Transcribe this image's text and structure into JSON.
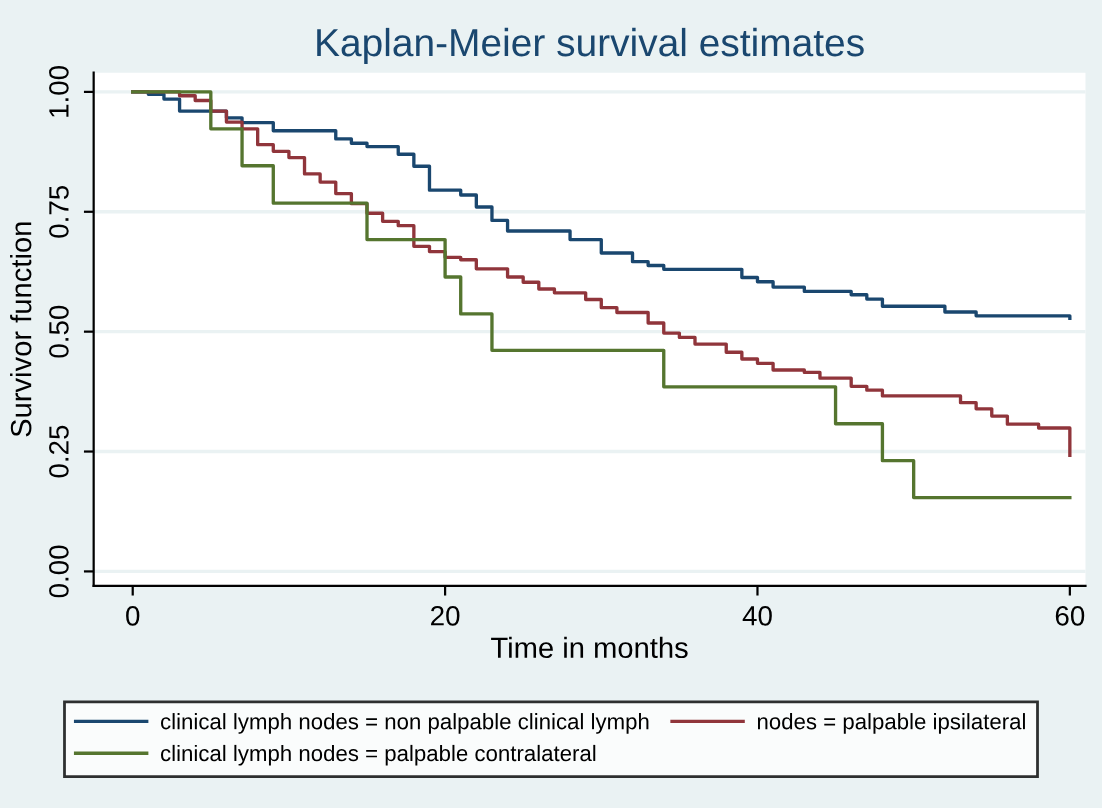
{
  "chart_data": {
    "type": "step",
    "title": "Kaplan-Meier survival estimates",
    "xlabel": "Time in months",
    "ylabel": "Survivor function",
    "xlim": [
      -2.5,
      61
    ],
    "xticks": [
      0,
      20,
      40,
      60
    ],
    "ylim": [
      -0.03,
      1.04
    ],
    "yticks": [
      {
        "value": 0,
        "label": "0.00"
      },
      {
        "value": 0.25,
        "label": "0.25"
      },
      {
        "value": 0.5,
        "label": "0.50"
      },
      {
        "value": 0.75,
        "label": "0.75"
      },
      {
        "value": 1,
        "label": "1.00"
      }
    ],
    "grid": "y",
    "legend": "bottom",
    "series": [
      {
        "name": "clinical lymph nodes = non palpable clinical lymph",
        "color": "#1a476f",
        "x": [
          0,
          1,
          2,
          3,
          6,
          7,
          9,
          13,
          14,
          15,
          17,
          18,
          19,
          21,
          22,
          23,
          24,
          28,
          30,
          32,
          33,
          34,
          39,
          40,
          41,
          43,
          46,
          47,
          48,
          52,
          54,
          60
        ],
        "values": [
          1.0,
          0.995,
          0.985,
          0.96,
          0.946,
          0.936,
          0.919,
          0.902,
          0.893,
          0.886,
          0.87,
          0.845,
          0.795,
          0.785,
          0.76,
          0.732,
          0.71,
          0.692,
          0.664,
          0.646,
          0.638,
          0.63,
          0.613,
          0.604,
          0.593,
          0.584,
          0.577,
          0.568,
          0.553,
          0.541,
          0.533,
          0.528
        ]
      },
      {
        "name": "nodes = palpable ipsilateral",
        "color": "#90353b",
        "x": [
          0,
          3,
          4,
          5,
          6,
          7,
          8,
          9,
          10,
          11,
          12,
          13,
          14,
          15,
          16,
          17,
          18,
          19,
          20,
          21,
          22,
          24,
          25,
          26,
          27,
          29,
          30,
          31,
          33,
          34,
          35,
          36,
          38,
          39,
          40,
          41,
          43,
          44,
          46,
          47,
          48,
          53,
          54,
          55,
          56,
          58,
          60
        ],
        "values": [
          1.0,
          0.992,
          0.982,
          0.96,
          0.937,
          0.923,
          0.89,
          0.876,
          0.863,
          0.829,
          0.812,
          0.788,
          0.767,
          0.747,
          0.73,
          0.721,
          0.678,
          0.667,
          0.655,
          0.65,
          0.631,
          0.614,
          0.603,
          0.589,
          0.581,
          0.567,
          0.55,
          0.54,
          0.518,
          0.497,
          0.488,
          0.474,
          0.457,
          0.443,
          0.434,
          0.42,
          0.415,
          0.403,
          0.386,
          0.378,
          0.366,
          0.352,
          0.339,
          0.324,
          0.307,
          0.299,
          0.242
        ]
      },
      {
        "name": "clinical lymph nodes = palpable contralateral",
        "color": "#55752f",
        "x": [
          0,
          5,
          7,
          9,
          15,
          20,
          21,
          23,
          34,
          45,
          48,
          50,
          60
        ],
        "values": [
          1.0,
          0.923,
          0.846,
          0.768,
          0.692,
          0.614,
          0.537,
          0.461,
          0.385,
          0.308,
          0.231,
          0.154,
          0.154
        ]
      }
    ]
  }
}
